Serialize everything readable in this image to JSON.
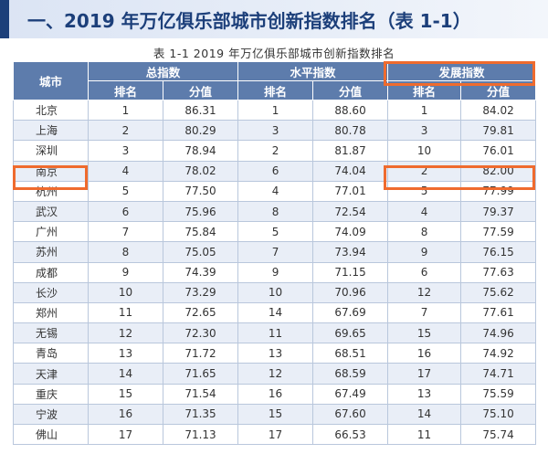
{
  "heading": "一、2019 年万亿俱乐部城市创新指数排名（表 1-1）",
  "caption": "表 1-1  2019 年万亿俱乐部城市创新指数排名",
  "columns": {
    "city": "城市",
    "total": "总指数",
    "level": "水平指数",
    "development": "发展指数",
    "rank": "排名",
    "score": "分值"
  },
  "rows": [
    {
      "city": "北京",
      "t_rank": "1",
      "t_score": "86.31",
      "l_rank": "1",
      "l_score": "88.60",
      "d_rank": "1",
      "d_score": "84.02"
    },
    {
      "city": "上海",
      "t_rank": "2",
      "t_score": "80.29",
      "l_rank": "3",
      "l_score": "80.78",
      "d_rank": "3",
      "d_score": "79.81"
    },
    {
      "city": "深圳",
      "t_rank": "3",
      "t_score": "78.94",
      "l_rank": "2",
      "l_score": "81.87",
      "d_rank": "10",
      "d_score": "76.01"
    },
    {
      "city": "南京",
      "t_rank": "4",
      "t_score": "78.02",
      "l_rank": "6",
      "l_score": "74.04",
      "d_rank": "2",
      "d_score": "82.00"
    },
    {
      "city": "杭州",
      "t_rank": "5",
      "t_score": "77.50",
      "l_rank": "4",
      "l_score": "77.01",
      "d_rank": "5",
      "d_score": "77.99"
    },
    {
      "city": "武汉",
      "t_rank": "6",
      "t_score": "75.96",
      "l_rank": "8",
      "l_score": "72.54",
      "d_rank": "4",
      "d_score": "79.37"
    },
    {
      "city": "广州",
      "t_rank": "7",
      "t_score": "75.84",
      "l_rank": "5",
      "l_score": "74.09",
      "d_rank": "8",
      "d_score": "77.59"
    },
    {
      "city": "苏州",
      "t_rank": "8",
      "t_score": "75.05",
      "l_rank": "7",
      "l_score": "73.94",
      "d_rank": "9",
      "d_score": "76.15"
    },
    {
      "city": "成都",
      "t_rank": "9",
      "t_score": "74.39",
      "l_rank": "9",
      "l_score": "71.15",
      "d_rank": "6",
      "d_score": "77.63"
    },
    {
      "city": "长沙",
      "t_rank": "10",
      "t_score": "73.29",
      "l_rank": "10",
      "l_score": "70.96",
      "d_rank": "12",
      "d_score": "75.62"
    },
    {
      "city": "郑州",
      "t_rank": "11",
      "t_score": "72.65",
      "l_rank": "14",
      "l_score": "67.69",
      "d_rank": "7",
      "d_score": "77.61"
    },
    {
      "city": "无锡",
      "t_rank": "12",
      "t_score": "72.30",
      "l_rank": "11",
      "l_score": "69.65",
      "d_rank": "15",
      "d_score": "74.96"
    },
    {
      "city": "青岛",
      "t_rank": "13",
      "t_score": "71.72",
      "l_rank": "13",
      "l_score": "68.51",
      "d_rank": "16",
      "d_score": "74.92"
    },
    {
      "city": "天津",
      "t_rank": "14",
      "t_score": "71.65",
      "l_rank": "12",
      "l_score": "68.59",
      "d_rank": "17",
      "d_score": "74.71"
    },
    {
      "city": "重庆",
      "t_rank": "15",
      "t_score": "71.54",
      "l_rank": "16",
      "l_score": "67.49",
      "d_rank": "13",
      "d_score": "75.59"
    },
    {
      "city": "宁波",
      "t_rank": "16",
      "t_score": "71.35",
      "l_rank": "15",
      "l_score": "67.60",
      "d_rank": "14",
      "d_score": "75.10"
    },
    {
      "city": "佛山",
      "t_rank": "17",
      "t_score": "71.13",
      "l_rank": "17",
      "l_score": "66.53",
      "d_rank": "11",
      "d_score": "75.74"
    }
  ],
  "colors": {
    "header": "#5d7cac",
    "stripe": "#e9eef7",
    "highlight": "#ef6b2e",
    "title": "#1c3f7a"
  }
}
